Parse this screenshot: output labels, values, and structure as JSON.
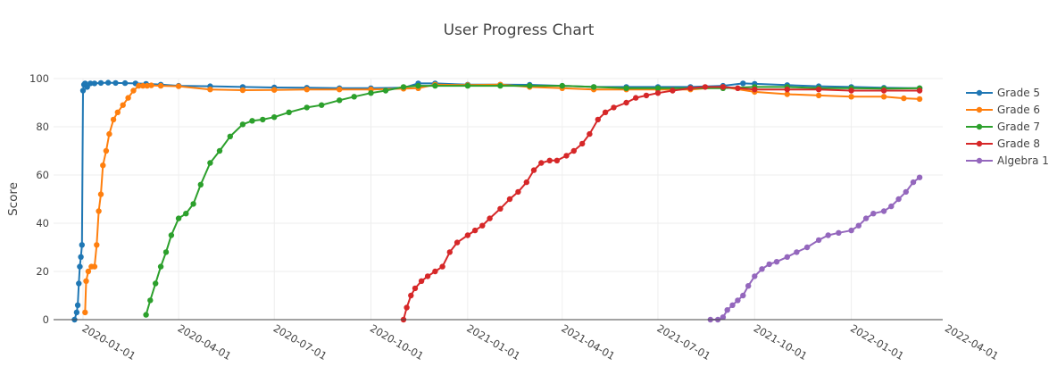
{
  "chart_data": {
    "type": "line",
    "title": "User Progress Chart",
    "xlabel": "",
    "ylabel": "Score",
    "x_axis_type": "date",
    "xlim": [
      "2019-12-04",
      "2022-03-29"
    ],
    "ylim": [
      0,
      100
    ],
    "x_ticks": [
      "2020-01-01",
      "2020-04-01",
      "2020-07-01",
      "2020-10-01",
      "2021-01-01",
      "2021-04-01",
      "2021-07-01",
      "2021-10-01",
      "2022-01-01",
      "2022-04-01"
    ],
    "y_ticks": [
      0,
      20,
      40,
      60,
      80,
      100
    ],
    "grid": true,
    "legend_position": "top-right",
    "markers": true,
    "series": [
      {
        "name": "Grade 5",
        "color": "#1f77b4",
        "x": [
          "2019-12-24",
          "2019-12-26",
          "2019-12-27",
          "2019-12-28",
          "2019-12-29",
          "2019-12-30",
          "2019-12-31",
          "2020-01-01",
          "2020-01-02",
          "2020-01-03",
          "2020-01-05",
          "2020-01-08",
          "2020-01-12",
          "2020-01-18",
          "2020-01-25",
          "2020-02-01",
          "2020-02-10",
          "2020-02-20",
          "2020-03-01",
          "2020-03-15",
          "2020-04-01",
          "2020-05-01",
          "2020-06-01",
          "2020-07-01",
          "2020-08-01",
          "2020-09-01",
          "2020-10-01",
          "2020-11-01",
          "2020-11-15",
          "2020-12-01",
          "2021-01-01",
          "2021-02-01",
          "2021-03-01",
          "2021-04-01",
          "2021-05-01",
          "2021-06-01",
          "2021-07-01",
          "2021-08-01",
          "2021-09-01",
          "2021-09-20",
          "2021-10-01",
          "2021-11-01",
          "2021-12-01",
          "2022-01-01",
          "2022-02-01",
          "2022-03-07"
        ],
        "y": [
          0,
          3,
          6,
          15,
          22,
          26,
          31,
          95,
          97.5,
          98,
          96.5,
          98,
          98,
          98.2,
          98.3,
          98.2,
          98.1,
          98,
          97.8,
          97.5,
          97,
          96.8,
          96.5,
          96.3,
          96.2,
          96,
          96,
          96.2,
          98,
          98,
          97.5,
          97.5,
          97.4,
          97,
          96.5,
          96.5,
          96.5,
          96.5,
          97,
          98,
          97.8,
          97.3,
          96.8,
          96.5,
          96.2,
          96
        ]
      },
      {
        "name": "Grade 6",
        "color": "#ff7f0e",
        "x": [
          "2020-01-03",
          "2020-01-04",
          "2020-01-06",
          "2020-01-09",
          "2020-01-12",
          "2020-01-14",
          "2020-01-16",
          "2020-01-18",
          "2020-01-20",
          "2020-01-23",
          "2020-01-26",
          "2020-01-30",
          "2020-02-03",
          "2020-02-08",
          "2020-02-13",
          "2020-02-18",
          "2020-02-23",
          "2020-02-27",
          "2020-03-02",
          "2020-03-06",
          "2020-03-15",
          "2020-04-01",
          "2020-05-01",
          "2020-06-01",
          "2020-07-01",
          "2020-08-01",
          "2020-09-01",
          "2020-10-01",
          "2020-11-01",
          "2020-11-15",
          "2020-12-01",
          "2021-01-01",
          "2021-02-01",
          "2021-03-01",
          "2021-04-01",
          "2021-05-01",
          "2021-06-01",
          "2021-07-01",
          "2021-08-01",
          "2021-09-01",
          "2021-10-01",
          "2021-11-01",
          "2021-12-01",
          "2022-01-01",
          "2022-02-01",
          "2022-02-20",
          "2022-03-07"
        ],
        "y": [
          3,
          16,
          20,
          22,
          22,
          31,
          45,
          52,
          64,
          70,
          77,
          83,
          86,
          89,
          92,
          95,
          97,
          97,
          97,
          97.2,
          97,
          96.8,
          95.5,
          95.2,
          95.3,
          95.5,
          95.5,
          95.5,
          95.8,
          96,
          97.5,
          97.3,
          97.5,
          96.5,
          96,
          95.5,
          95.5,
          95.5,
          95.5,
          96.5,
          94.5,
          93.5,
          93,
          92.5,
          92.5,
          91.8,
          91.5
        ]
      },
      {
        "name": "Grade 7",
        "color": "#2ca02c",
        "x": [
          "2020-03-01",
          "2020-03-05",
          "2020-03-10",
          "2020-03-15",
          "2020-03-20",
          "2020-03-25",
          "2020-04-01",
          "2020-04-08",
          "2020-04-15",
          "2020-04-22",
          "2020-05-01",
          "2020-05-10",
          "2020-05-20",
          "2020-06-01",
          "2020-06-10",
          "2020-06-20",
          "2020-07-01",
          "2020-07-15",
          "2020-08-01",
          "2020-08-15",
          "2020-09-01",
          "2020-09-15",
          "2020-10-01",
          "2020-10-15",
          "2020-11-01",
          "2020-11-15",
          "2020-12-01",
          "2021-01-01",
          "2021-02-01",
          "2021-03-01",
          "2021-04-01",
          "2021-05-01",
          "2021-06-01",
          "2021-07-01",
          "2021-08-01",
          "2021-09-01",
          "2021-10-01",
          "2021-11-01",
          "2021-12-01",
          "2022-01-01",
          "2022-02-01",
          "2022-03-07"
        ],
        "y": [
          2,
          8,
          15,
          22,
          28,
          35,
          42,
          44,
          48,
          56,
          65,
          70,
          76,
          81,
          82.5,
          83,
          84,
          86,
          88,
          89,
          91,
          92.5,
          94,
          95,
          96.5,
          97,
          97,
          97,
          97,
          97,
          97,
          96.5,
          96,
          96,
          96,
          96,
          96.5,
          96.5,
          96,
          96,
          95.8,
          96
        ]
      },
      {
        "name": "Grade 8",
        "color": "#d62728",
        "x": [
          "2020-11-01",
          "2020-11-04",
          "2020-11-08",
          "2020-11-12",
          "2020-11-18",
          "2020-11-24",
          "2020-12-01",
          "2020-12-08",
          "2020-12-15",
          "2020-12-22",
          "2021-01-01",
          "2021-01-08",
          "2021-01-15",
          "2021-01-22",
          "2021-02-01",
          "2021-02-10",
          "2021-02-18",
          "2021-02-26",
          "2021-03-05",
          "2021-03-12",
          "2021-03-20",
          "2021-03-27",
          "2021-04-05",
          "2021-04-12",
          "2021-04-20",
          "2021-04-27",
          "2021-05-05",
          "2021-05-12",
          "2021-05-20",
          "2021-06-01",
          "2021-06-10",
          "2021-06-20",
          "2021-07-01",
          "2021-07-15",
          "2021-08-01",
          "2021-08-15",
          "2021-09-01",
          "2021-09-15",
          "2021-10-01",
          "2021-11-01",
          "2021-12-01",
          "2022-01-01",
          "2022-02-01",
          "2022-03-07"
        ],
        "y": [
          0,
          5,
          10,
          13,
          16,
          18,
          20,
          22,
          28,
          32,
          35,
          37,
          39,
          42,
          46,
          50,
          53,
          57,
          62,
          65,
          66,
          66,
          68,
          70,
          73,
          77,
          83,
          86,
          88,
          90,
          92,
          93,
          94,
          95,
          96,
          96.5,
          96.5,
          96,
          95.5,
          95.5,
          95.5,
          95,
          95,
          95
        ]
      },
      {
        "name": "Algebra 1",
        "color": "#9467bd",
        "x": [
          "2021-08-20",
          "2021-08-27",
          "2021-09-01",
          "2021-09-05",
          "2021-09-10",
          "2021-09-15",
          "2021-09-20",
          "2021-09-25",
          "2021-10-01",
          "2021-10-08",
          "2021-10-15",
          "2021-10-22",
          "2021-11-01",
          "2021-11-10",
          "2021-11-20",
          "2021-12-01",
          "2021-12-10",
          "2021-12-20",
          "2022-01-01",
          "2022-01-08",
          "2022-01-15",
          "2022-01-22",
          "2022-02-01",
          "2022-02-08",
          "2022-02-15",
          "2022-02-22",
          "2022-03-01",
          "2022-03-07"
        ],
        "y": [
          0,
          0,
          1,
          4,
          6,
          8,
          10,
          14,
          18,
          21,
          23,
          24,
          26,
          28,
          30,
          33,
          35,
          36,
          37,
          39,
          42,
          44,
          45,
          47,
          50,
          53,
          57,
          59
        ]
      }
    ]
  }
}
